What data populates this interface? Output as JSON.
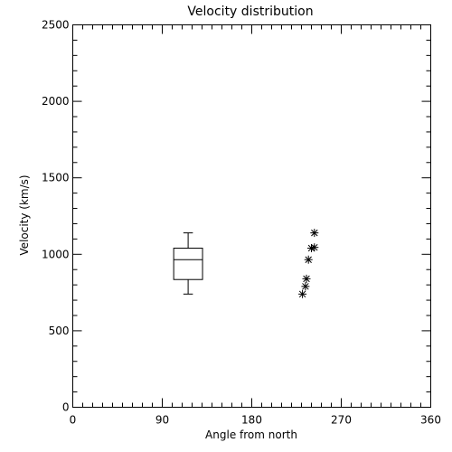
{
  "chart_data": {
    "type": "scatter",
    "title": "Velocity distribution",
    "xlabel": "Angle from north",
    "ylabel": "Velocity (km/s)",
    "xlim": [
      0,
      360
    ],
    "ylim": [
      0,
      2500
    ],
    "x_ticks": [
      0,
      90,
      180,
      270,
      360
    ],
    "y_ticks": [
      0,
      500,
      1000,
      1500,
      2000,
      2500
    ],
    "x_tick_labels": [
      "0",
      "90",
      "180",
      "270",
      "360"
    ],
    "y_tick_labels": [
      "0",
      "500",
      "1000",
      "1500",
      "2000",
      "2500"
    ],
    "x_minor_step": 10,
    "y_minor_step": 100,
    "grid": false,
    "boxplot": {
      "x": 116,
      "width": 29,
      "whisker_low": 740,
      "q1": 835,
      "median": 965,
      "q3": 1040,
      "whisker_high": 1140
    },
    "points": [
      {
        "x": 231,
        "y": 740
      },
      {
        "x": 234,
        "y": 790
      },
      {
        "x": 235,
        "y": 840
      },
      {
        "x": 237,
        "y": 965
      },
      {
        "x": 240,
        "y": 1040
      },
      {
        "x": 243,
        "y": 1045
      },
      {
        "x": 243,
        "y": 1140
      }
    ],
    "marker": "asterisk"
  }
}
